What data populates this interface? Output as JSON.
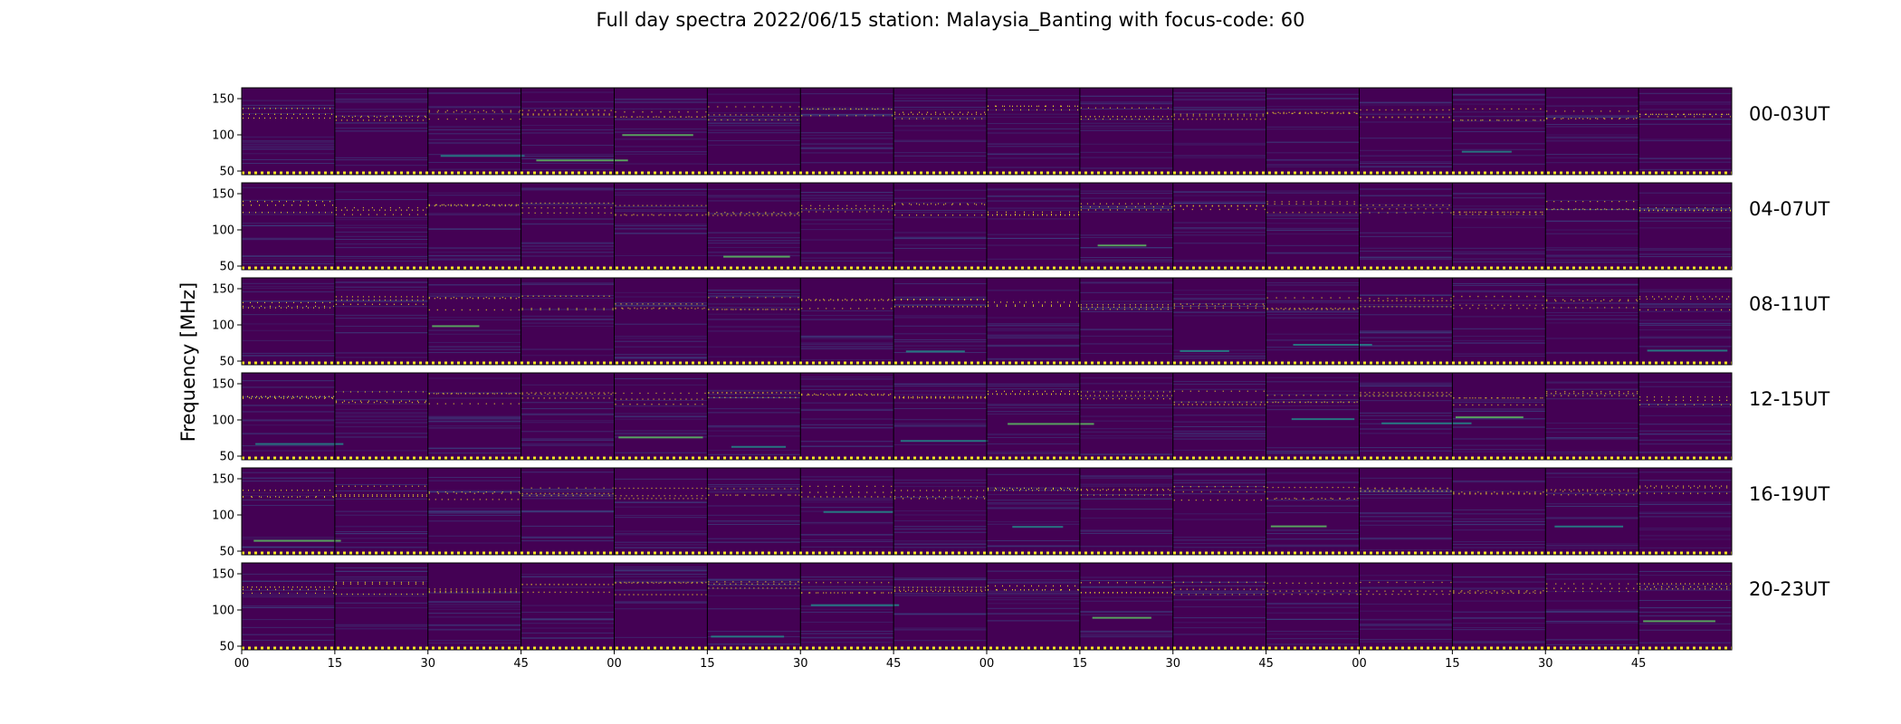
{
  "chart_data": {
    "type": "heatmap",
    "title": "Full day spectra 2022/06/15 station: Malaysia_Banting with focus-code: 60",
    "ylabel": "Frequency [MHz]",
    "xlabel": "",
    "ylim": [
      45,
      165
    ],
    "yticks": [
      "50",
      "100",
      "150"
    ],
    "xticks": [
      "00",
      "15",
      "30",
      "45",
      "00",
      "15",
      "30",
      "45",
      "00",
      "15",
      "30",
      "45",
      "00",
      "15",
      "30",
      "45"
    ],
    "panels_per_row": 16,
    "panel_minutes": 15,
    "rows": [
      {
        "label": "00-03UT"
      },
      {
        "label": "04-07UT"
      },
      {
        "label": "08-11UT"
      },
      {
        "label": "12-15UT"
      },
      {
        "label": "16-19UT"
      },
      {
        "label": "20-23UT"
      }
    ],
    "colormap": [
      "#440154",
      "#3b528b",
      "#21918c",
      "#5ec962",
      "#fde725"
    ]
  }
}
